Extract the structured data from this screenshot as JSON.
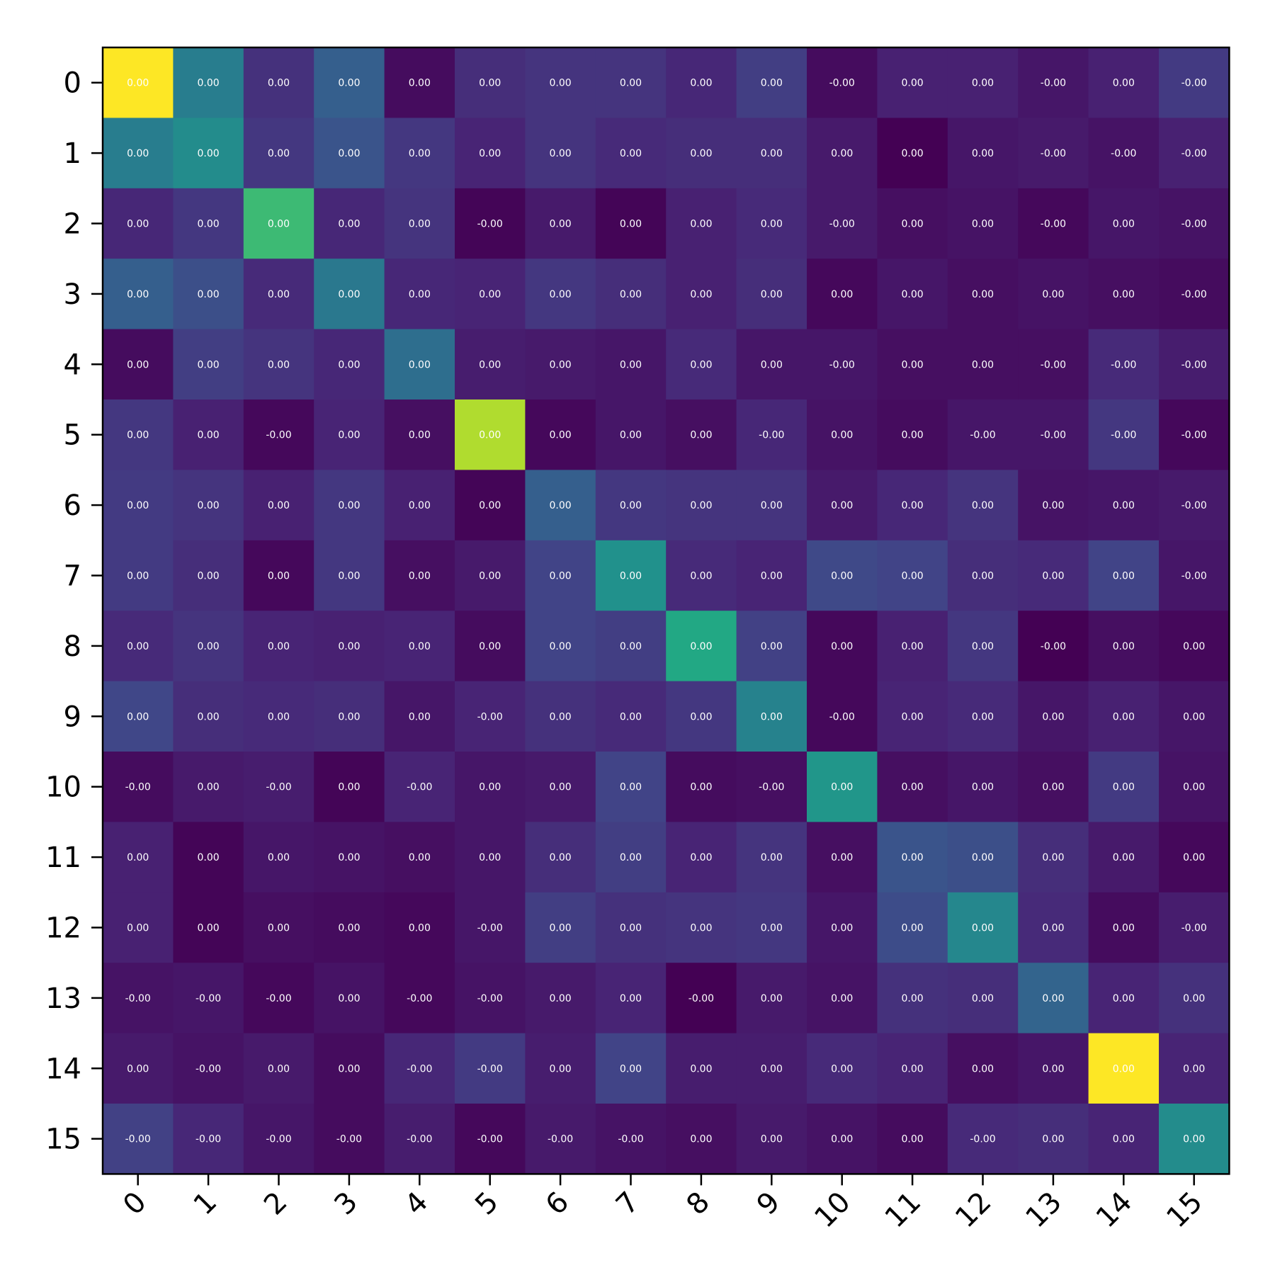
{
  "chart_data": {
    "type": "heatmap",
    "title": "",
    "xlabel": "",
    "ylabel": "",
    "x_ticks": [
      "0",
      "1",
      "2",
      "3",
      "4",
      "5",
      "6",
      "7",
      "8",
      "9",
      "10",
      "11",
      "12",
      "13",
      "14",
      "15"
    ],
    "y_ticks": [
      "0",
      "1",
      "2",
      "3",
      "4",
      "5",
      "6",
      "7",
      "8",
      "9",
      "10",
      "11",
      "12",
      "13",
      "14",
      "15"
    ],
    "colormap": "viridis",
    "grid": false,
    "x_tick_rotation_deg": 45,
    "cell_labels": [
      [
        "0.00",
        "0.00",
        "0.00",
        "0.00",
        "0.00",
        "0.00",
        "0.00",
        "0.00",
        "0.00",
        "0.00",
        "-0.00",
        "0.00",
        "0.00",
        "-0.00",
        "0.00",
        "-0.00"
      ],
      [
        "0.00",
        "0.00",
        "0.00",
        "0.00",
        "0.00",
        "0.00",
        "0.00",
        "0.00",
        "0.00",
        "0.00",
        "0.00",
        "0.00",
        "0.00",
        "-0.00",
        "-0.00",
        "-0.00"
      ],
      [
        "0.00",
        "0.00",
        "0.00",
        "0.00",
        "0.00",
        "-0.00",
        "0.00",
        "0.00",
        "0.00",
        "0.00",
        "-0.00",
        "0.00",
        "0.00",
        "-0.00",
        "0.00",
        "-0.00"
      ],
      [
        "0.00",
        "0.00",
        "0.00",
        "0.00",
        "0.00",
        "0.00",
        "0.00",
        "0.00",
        "0.00",
        "0.00",
        "0.00",
        "0.00",
        "0.00",
        "0.00",
        "0.00",
        "-0.00"
      ],
      [
        "0.00",
        "0.00",
        "0.00",
        "0.00",
        "0.00",
        "0.00",
        "0.00",
        "0.00",
        "0.00",
        "0.00",
        "-0.00",
        "0.00",
        "0.00",
        "-0.00",
        "-0.00",
        "-0.00"
      ],
      [
        "0.00",
        "0.00",
        "-0.00",
        "0.00",
        "0.00",
        "0.00",
        "0.00",
        "0.00",
        "0.00",
        "-0.00",
        "0.00",
        "0.00",
        "-0.00",
        "-0.00",
        "-0.00",
        "-0.00"
      ],
      [
        "0.00",
        "0.00",
        "0.00",
        "0.00",
        "0.00",
        "0.00",
        "0.00",
        "0.00",
        "0.00",
        "0.00",
        "0.00",
        "0.00",
        "0.00",
        "0.00",
        "0.00",
        "-0.00"
      ],
      [
        "0.00",
        "0.00",
        "0.00",
        "0.00",
        "0.00",
        "0.00",
        "0.00",
        "0.00",
        "0.00",
        "0.00",
        "0.00",
        "0.00",
        "0.00",
        "0.00",
        "0.00",
        "-0.00"
      ],
      [
        "0.00",
        "0.00",
        "0.00",
        "0.00",
        "0.00",
        "0.00",
        "0.00",
        "0.00",
        "0.00",
        "0.00",
        "0.00",
        "0.00",
        "0.00",
        "-0.00",
        "0.00",
        "0.00"
      ],
      [
        "0.00",
        "0.00",
        "0.00",
        "0.00",
        "0.00",
        "-0.00",
        "0.00",
        "0.00",
        "0.00",
        "0.00",
        "-0.00",
        "0.00",
        "0.00",
        "0.00",
        "0.00",
        "0.00"
      ],
      [
        "-0.00",
        "0.00",
        "-0.00",
        "0.00",
        "-0.00",
        "0.00",
        "0.00",
        "0.00",
        "0.00",
        "-0.00",
        "0.00",
        "0.00",
        "0.00",
        "0.00",
        "0.00",
        "0.00"
      ],
      [
        "0.00",
        "0.00",
        "0.00",
        "0.00",
        "0.00",
        "0.00",
        "0.00",
        "0.00",
        "0.00",
        "0.00",
        "0.00",
        "0.00",
        "0.00",
        "0.00",
        "0.00",
        "0.00"
      ],
      [
        "0.00",
        "0.00",
        "0.00",
        "0.00",
        "0.00",
        "-0.00",
        "0.00",
        "0.00",
        "0.00",
        "0.00",
        "0.00",
        "0.00",
        "0.00",
        "0.00",
        "0.00",
        "-0.00"
      ],
      [
        "-0.00",
        "-0.00",
        "-0.00",
        "0.00",
        "-0.00",
        "-0.00",
        "0.00",
        "0.00",
        "-0.00",
        "0.00",
        "0.00",
        "0.00",
        "0.00",
        "0.00",
        "0.00",
        "0.00"
      ],
      [
        "0.00",
        "-0.00",
        "0.00",
        "0.00",
        "-0.00",
        "-0.00",
        "0.00",
        "0.00",
        "0.00",
        "0.00",
        "0.00",
        "0.00",
        "0.00",
        "0.00",
        "0.00",
        "0.00"
      ],
      [
        "-0.00",
        "-0.00",
        "-0.00",
        "-0.00",
        "-0.00",
        "-0.00",
        "-0.00",
        "-0.00",
        "0.00",
        "0.00",
        "0.00",
        "0.00",
        "-0.00",
        "0.00",
        "0.00",
        "0.00"
      ]
    ],
    "intensity": [
      [
        1.0,
        0.42,
        0.14,
        0.3,
        0.03,
        0.13,
        0.15,
        0.15,
        0.11,
        0.18,
        0.03,
        0.09,
        0.09,
        0.06,
        0.09,
        0.17
      ],
      [
        0.42,
        0.48,
        0.16,
        0.26,
        0.16,
        0.1,
        0.15,
        0.12,
        0.13,
        0.13,
        0.07,
        0.0,
        0.06,
        0.07,
        0.05,
        0.09
      ],
      [
        0.11,
        0.16,
        0.68,
        0.11,
        0.15,
        0.01,
        0.07,
        0.01,
        0.09,
        0.12,
        0.07,
        0.04,
        0.05,
        0.02,
        0.06,
        0.05
      ],
      [
        0.3,
        0.24,
        0.12,
        0.4,
        0.11,
        0.1,
        0.16,
        0.13,
        0.09,
        0.13,
        0.02,
        0.06,
        0.04,
        0.05,
        0.04,
        0.03
      ],
      [
        0.03,
        0.18,
        0.15,
        0.11,
        0.36,
        0.08,
        0.07,
        0.06,
        0.12,
        0.06,
        0.06,
        0.04,
        0.04,
        0.04,
        0.12,
        0.08
      ],
      [
        0.16,
        0.09,
        0.02,
        0.1,
        0.04,
        0.88,
        0.02,
        0.06,
        0.04,
        0.11,
        0.05,
        0.03,
        0.06,
        0.06,
        0.16,
        0.02
      ],
      [
        0.17,
        0.15,
        0.09,
        0.16,
        0.09,
        0.01,
        0.3,
        0.16,
        0.15,
        0.15,
        0.07,
        0.11,
        0.15,
        0.05,
        0.06,
        0.07
      ],
      [
        0.17,
        0.13,
        0.02,
        0.16,
        0.04,
        0.07,
        0.2,
        0.5,
        0.12,
        0.1,
        0.22,
        0.2,
        0.13,
        0.12,
        0.2,
        0.06
      ],
      [
        0.12,
        0.15,
        0.1,
        0.09,
        0.1,
        0.03,
        0.2,
        0.18,
        0.6,
        0.19,
        0.02,
        0.09,
        0.16,
        0.0,
        0.04,
        0.02
      ],
      [
        0.21,
        0.13,
        0.12,
        0.13,
        0.06,
        0.1,
        0.14,
        0.12,
        0.16,
        0.44,
        0.02,
        0.1,
        0.12,
        0.06,
        0.09,
        0.06
      ],
      [
        0.03,
        0.07,
        0.08,
        0.01,
        0.1,
        0.06,
        0.07,
        0.2,
        0.03,
        0.04,
        0.52,
        0.04,
        0.06,
        0.04,
        0.17,
        0.05
      ],
      [
        0.09,
        0.01,
        0.06,
        0.05,
        0.04,
        0.06,
        0.13,
        0.18,
        0.1,
        0.15,
        0.04,
        0.26,
        0.24,
        0.13,
        0.07,
        0.02
      ],
      [
        0.09,
        0.01,
        0.04,
        0.03,
        0.02,
        0.06,
        0.18,
        0.14,
        0.15,
        0.16,
        0.06,
        0.23,
        0.46,
        0.12,
        0.03,
        0.08
      ],
      [
        0.05,
        0.06,
        0.02,
        0.05,
        0.02,
        0.05,
        0.07,
        0.1,
        0.0,
        0.07,
        0.05,
        0.14,
        0.13,
        0.32,
        0.1,
        0.14
      ],
      [
        0.07,
        0.05,
        0.07,
        0.03,
        0.11,
        0.17,
        0.08,
        0.2,
        0.08,
        0.08,
        0.12,
        0.1,
        0.04,
        0.06,
        1.0,
        0.1
      ],
      [
        0.19,
        0.11,
        0.06,
        0.03,
        0.08,
        0.02,
        0.07,
        0.05,
        0.04,
        0.07,
        0.05,
        0.03,
        0.12,
        0.13,
        0.1,
        0.48
      ]
    ]
  }
}
